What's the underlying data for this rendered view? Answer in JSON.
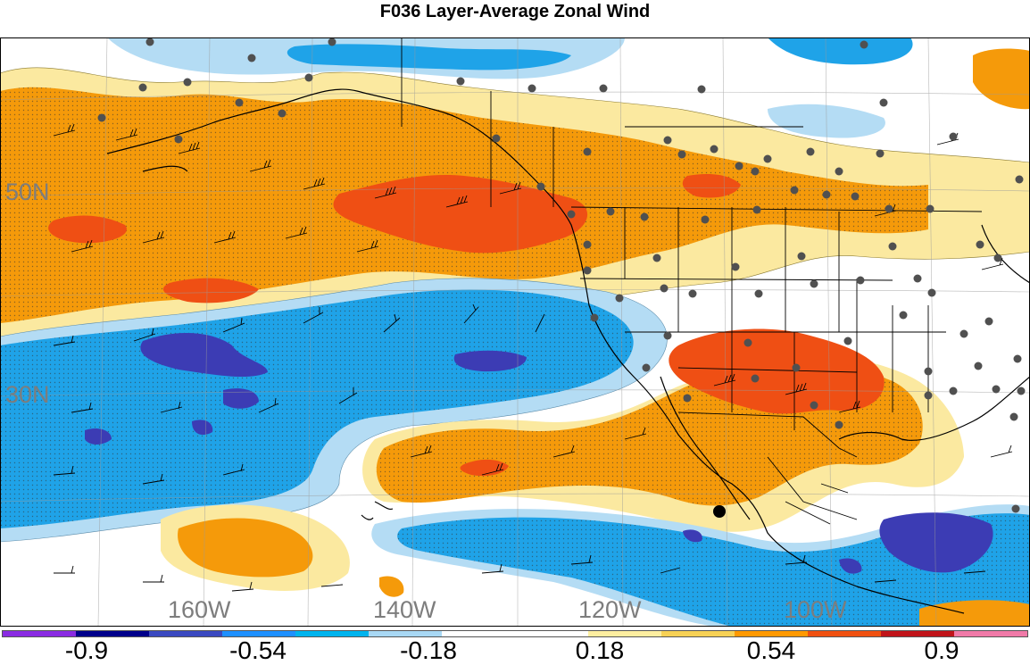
{
  "title": "F036 Layer-Average Zonal Wind",
  "map": {
    "lat_labels": [
      "50N",
      "30N"
    ],
    "lon_labels": [
      "160W",
      "140W",
      "120W",
      "100W"
    ]
  },
  "colorbar": {
    "colors": [
      "#8a2be2",
      "#00008b",
      "#3a49c0",
      "#1e90ff",
      "#00b4ee",
      "#a8d8f4",
      "#ffffff",
      "#ffffff",
      "#fdeea0",
      "#f7d155",
      "#ff9900",
      "#f05010",
      "#c0141a",
      "#f07aa8"
    ],
    "tick_labels": [
      "-0.9",
      "-0.54",
      "-0.18",
      "0.18",
      "0.54",
      "0.9"
    ]
  },
  "palette": {
    "strong_neg": "#3c3cb4",
    "neg": "#1fa3e8",
    "weak_neg": "#b4dcf4",
    "weak_pos": "#fbe9a0",
    "pos": "#f59a0a",
    "strong_pos": "#ef4f14",
    "station": "#505050",
    "marker": "#000000"
  }
}
